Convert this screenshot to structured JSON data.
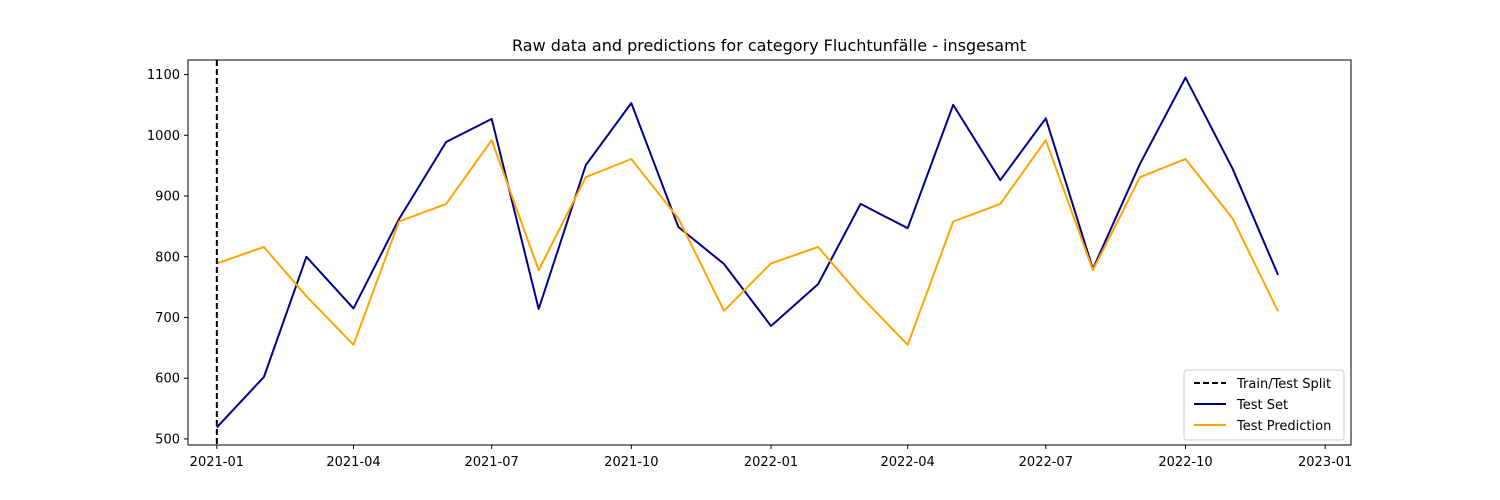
{
  "chart_data": {
    "type": "line",
    "title": "Raw data and predictions for category Fluchtunfälle - insgesamt",
    "xlabel": "",
    "ylabel": "",
    "x": [
      "2021-01",
      "2021-02",
      "2021-03",
      "2021-04",
      "2021-05",
      "2021-06",
      "2021-07",
      "2021-08",
      "2021-09",
      "2021-10",
      "2021-11",
      "2021-12",
      "2022-01",
      "2022-02",
      "2022-03",
      "2022-04",
      "2022-05",
      "2022-06",
      "2022-07",
      "2022-08",
      "2022-09",
      "2022-10",
      "2022-11",
      "2022-12"
    ],
    "x_tick_labels": [
      "2021-01",
      "2021-04",
      "2021-07",
      "2021-10",
      "2022-01",
      "2022-04",
      "2022-07",
      "2022-10",
      "2023-01"
    ],
    "y_ticks": [
      500,
      600,
      700,
      800,
      900,
      1000,
      1100
    ],
    "ylim": [
      490,
      1124
    ],
    "xlim": [
      "2020-12-13",
      "2023-01-18"
    ],
    "grid": false,
    "legend_position": "lower-right",
    "split": {
      "name": "Train/Test Split",
      "x": "2021-01",
      "color": "#000000",
      "style": "dashed"
    },
    "series": [
      {
        "name": "Test Set",
        "color": "#00008b",
        "values": [
          519,
          602,
          800,
          715,
          862,
          989,
          1027,
          714,
          951,
          1053,
          849,
          788,
          686,
          755,
          887,
          847,
          1050,
          926,
          1028,
          780,
          953,
          1095,
          945,
          770
        ]
      },
      {
        "name": "Test Prediction",
        "color": "#ffa500",
        "values": [
          789,
          816,
          735,
          655,
          858,
          887,
          992,
          778,
          931,
          961,
          863,
          711,
          789,
          816,
          735,
          655,
          858,
          887,
          992,
          778,
          931,
          961,
          863,
          710
        ]
      }
    ]
  }
}
